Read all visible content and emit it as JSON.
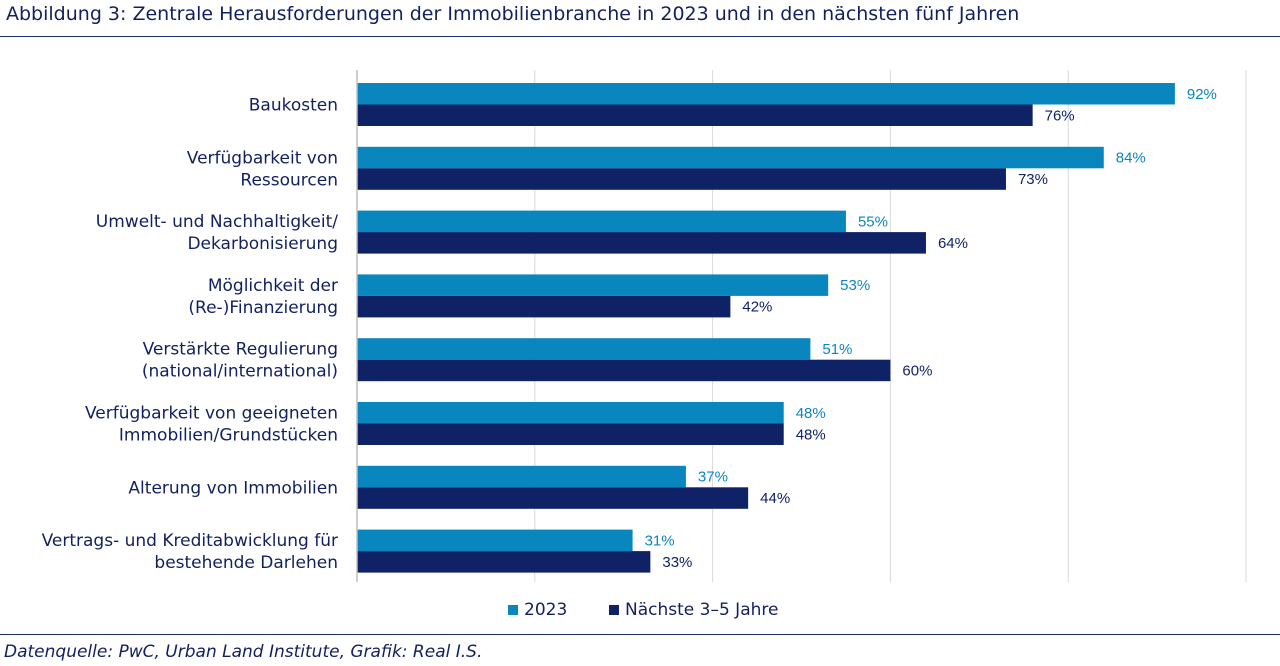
{
  "title": "Abbildung 3: Zentrale Herausforderungen der Immobilienbranche in 2023 und in den nächsten fünf Jahren",
  "source": "Datenquelle: PwC, Urban Land Institute, Grafik: Real I.S.",
  "colors": {
    "series_2023": "#0a86bf",
    "series_future": "#0f2266",
    "text": "#12205e",
    "grid": "#d9d9d9",
    "axis": "#bfbfbf"
  },
  "chart_data": {
    "type": "bar",
    "orientation": "horizontal",
    "categories": [
      [
        "Baukosten"
      ],
      [
        "Verfügbarkeit von",
        "Ressourcen"
      ],
      [
        "Umwelt- und Nachhaltigkeit/",
        "Dekarbonisierung"
      ],
      [
        "Möglichkeit der",
        "(Re-)Finanzierung"
      ],
      [
        "Verstärkte Regulierung",
        "(national/international)"
      ],
      [
        "Verfügbarkeit von geeigneten",
        "Immobilien/Grundstücken"
      ],
      [
        "Alterung von Immobilien"
      ],
      [
        "Vertrags- und Kreditabwicklung für",
        "bestehende Darlehen"
      ]
    ],
    "series": [
      {
        "name": "2023",
        "values": [
          92,
          84,
          55,
          53,
          51,
          48,
          37,
          31
        ],
        "labels": [
          "92%",
          "84%",
          "55%",
          "53%",
          "51%",
          "48%",
          "37%",
          "31%"
        ]
      },
      {
        "name": "Nächste 3–5 Jahre",
        "values": [
          76,
          73,
          64,
          42,
          60,
          48,
          44,
          33
        ],
        "labels": [
          "76%",
          "73%",
          "64%",
          "42%",
          "60%",
          "48%",
          "44%",
          "33%"
        ]
      }
    ],
    "xlim": [
      0,
      100
    ],
    "grid": true,
    "legend_position": "bottom-center"
  }
}
